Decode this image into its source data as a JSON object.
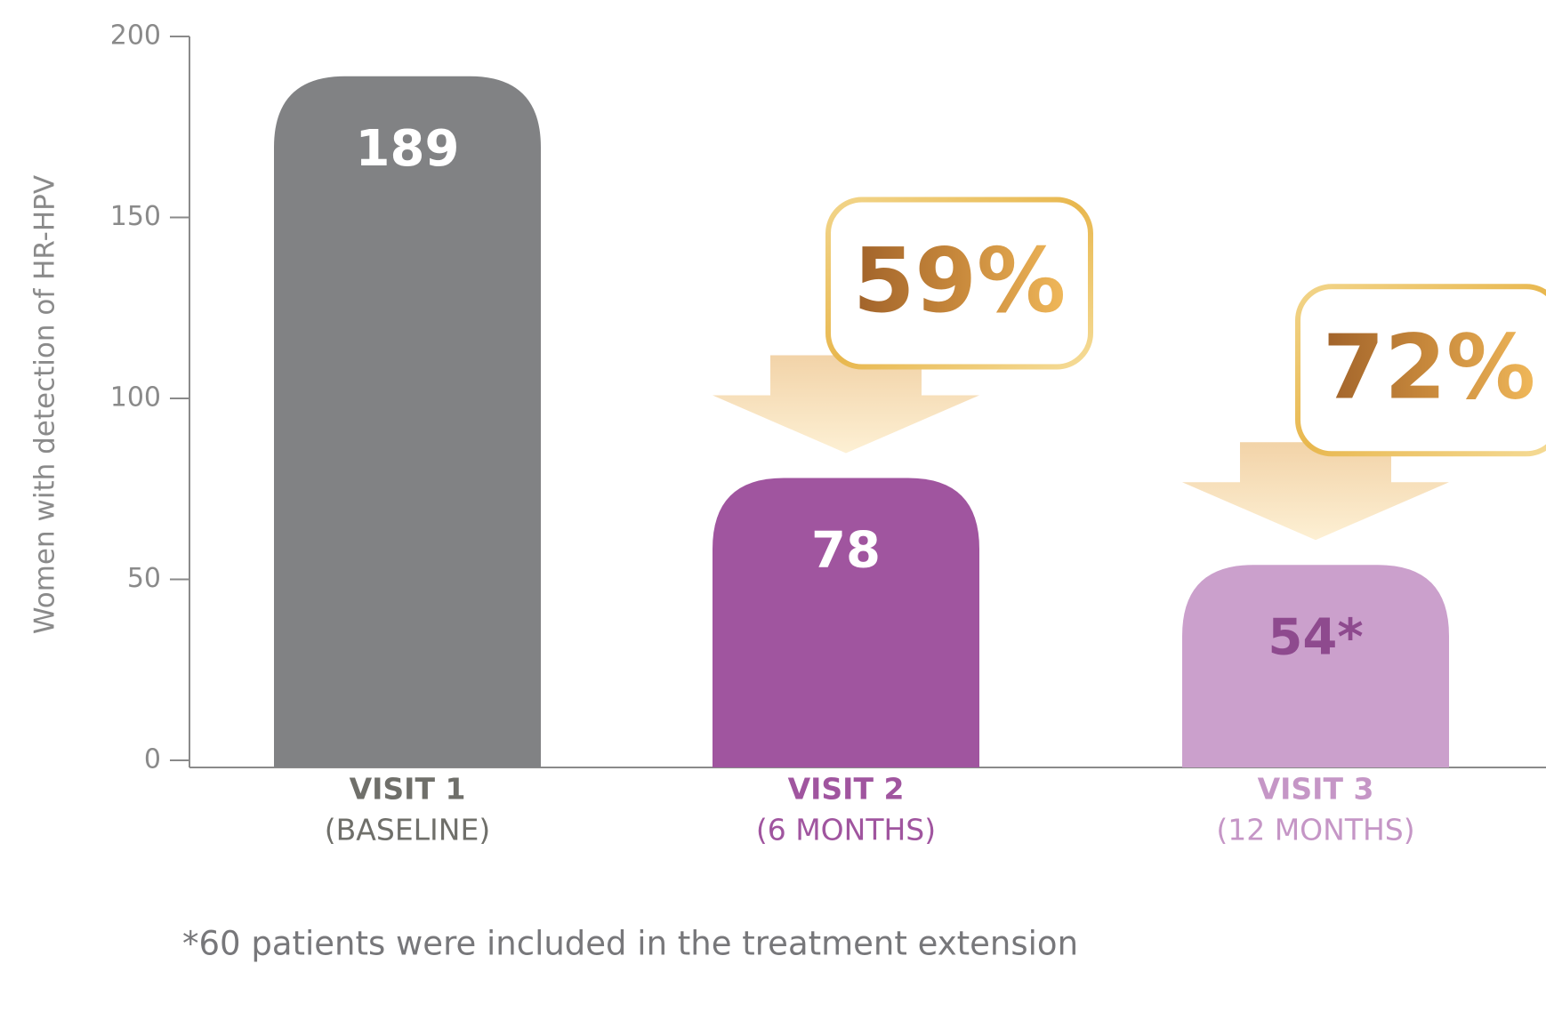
{
  "chart_data": {
    "type": "bar",
    "y_label": "Women with detection of HR-HPV",
    "categories": [
      "VISIT 1",
      "VISIT 2",
      "VISIT 3"
    ],
    "category_sublabels": [
      "(BASELINE)",
      "(6 MONTHS)",
      "(12 MONTHS)"
    ],
    "values": [
      189,
      78,
      54
    ],
    "value_labels": [
      "189",
      "78",
      "54*"
    ],
    "colors": [
      "#818284",
      "#a0559f",
      "#cba0cc"
    ],
    "label_colors": [
      "#6f6f6a",
      "#a0559f",
      "#c596c6"
    ],
    "ylim": [
      0,
      200
    ],
    "yticks": [
      0,
      50,
      100,
      150,
      200
    ],
    "annotations": [
      "59%",
      "72%"
    ],
    "footnote": "*60 patients were included in the treatment extension"
  }
}
